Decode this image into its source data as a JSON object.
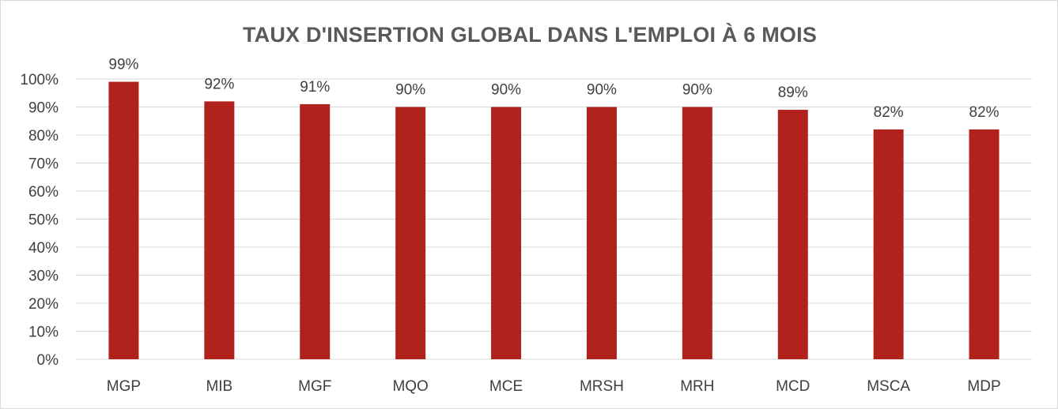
{
  "chart_data": {
    "type": "bar",
    "title": "TAUX D'INSERTION GLOBAL DANS L'EMPLOI À 6 MOIS",
    "xlabel": "",
    "ylabel": "",
    "categories": [
      "MGP",
      "MIB",
      "MGF",
      "MQO",
      "MCE",
      "MRSH",
      "MRH",
      "MCD",
      "MSCA",
      "MDP"
    ],
    "values": [
      99,
      92,
      91,
      90,
      90,
      90,
      90,
      89,
      82,
      82
    ],
    "data_labels": [
      "99%",
      "92%",
      "91%",
      "90%",
      "90%",
      "90%",
      "90%",
      "89%",
      "82%",
      "82%"
    ],
    "y_ticks": [
      "0%",
      "10%",
      "20%",
      "30%",
      "40%",
      "50%",
      "60%",
      "70%",
      "80%",
      "90%",
      "100%"
    ],
    "ylim": [
      0,
      100
    ],
    "grid": true,
    "legend": "none",
    "bar_color": "#b0221b"
  }
}
